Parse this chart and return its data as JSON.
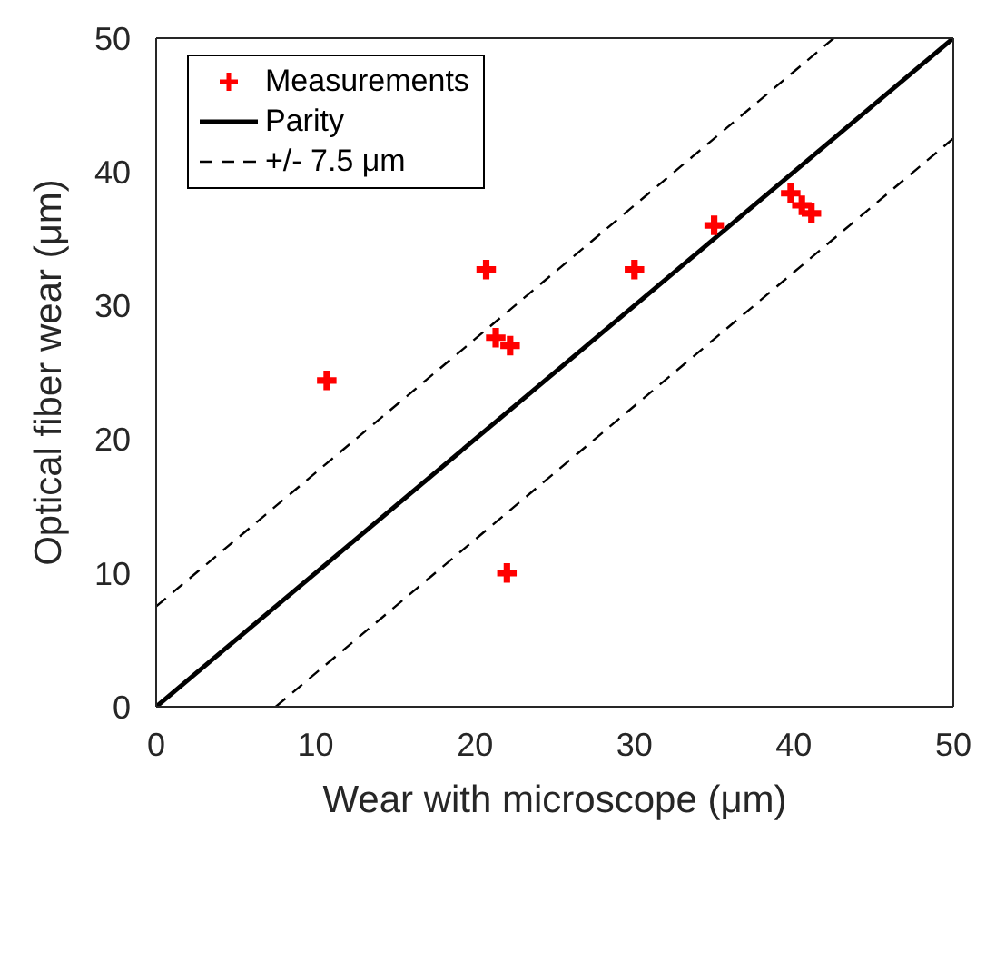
{
  "chart_data": {
    "type": "scatter",
    "xlabel": "Wear with microscope (μm)",
    "ylabel": "Optical fiber wear (μm)",
    "xlim": [
      0,
      50
    ],
    "ylim": [
      0,
      50
    ],
    "xticks": [
      0,
      10,
      20,
      30,
      40,
      50
    ],
    "yticks": [
      0,
      10,
      20,
      30,
      40,
      50
    ],
    "grid": false,
    "legend": "top left",
    "series": [
      {
        "name": "Measurements",
        "marker": "cross",
        "color": "#ff0000",
        "x": [
          10.7,
          20.7,
          21.3,
          22.2,
          22.0,
          30.0,
          35.0,
          39.8,
          40.5,
          41.1
        ],
        "values": [
          24.4,
          32.7,
          27.6,
          27.0,
          10.0,
          32.7,
          36.0,
          38.4,
          37.5,
          36.9
        ]
      },
      {
        "name": "Parity",
        "type": "line",
        "line_style": "solid",
        "color": "#000000",
        "x": [
          0,
          50
        ],
        "values": [
          0,
          50
        ]
      },
      {
        "name": "+/- 7.5 μm",
        "type": "line",
        "line_style": "dashed",
        "color": "#000000",
        "x": [
          0,
          42.5
        ],
        "values": [
          7.5,
          50
        ]
      },
      {
        "type": "line",
        "line_style": "dashed",
        "color": "#000000",
        "x": [
          7.5,
          50
        ],
        "values": [
          0,
          42.5
        ]
      }
    ]
  }
}
